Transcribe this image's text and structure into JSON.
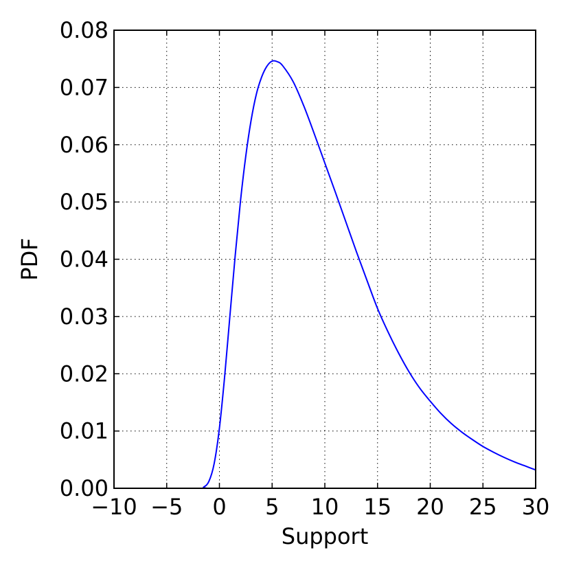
{
  "chart_data": {
    "type": "line",
    "title": "",
    "xlabel": "Support",
    "ylabel": "PDF",
    "xlim": [
      -10,
      30
    ],
    "ylim": [
      0.0,
      0.08
    ],
    "grid": true,
    "x_ticks": [
      -10,
      -5,
      0,
      5,
      10,
      15,
      20,
      25,
      30
    ],
    "x_tick_labels": [
      "−10",
      "−5",
      "0",
      "5",
      "10",
      "15",
      "20",
      "25",
      "30"
    ],
    "y_ticks": [
      0.0,
      0.01,
      0.02,
      0.03,
      0.04,
      0.05,
      0.06,
      0.07,
      0.08
    ],
    "y_tick_labels": [
      "0.00",
      "0.01",
      "0.02",
      "0.03",
      "0.04",
      "0.05",
      "0.06",
      "0.07",
      "0.08"
    ],
    "series": [
      {
        "color": "#0000ff",
        "x": [
          -10,
          -2,
          -1.5,
          -1,
          -0.5,
          0,
          0.5,
          1,
          1.5,
          2,
          2.5,
          3,
          3.5,
          4,
          4.5,
          5,
          5.5,
          6,
          7,
          8,
          9,
          10,
          11,
          12,
          13,
          14,
          15,
          16,
          17,
          18,
          19,
          20,
          21,
          22,
          23,
          24,
          25,
          26,
          27,
          28,
          29,
          30
        ],
        "y": [
          0.0,
          0.0,
          0.0002,
          0.0012,
          0.0043,
          0.0105,
          0.0196,
          0.0302,
          0.0407,
          0.0502,
          0.058,
          0.0642,
          0.0688,
          0.0718,
          0.0737,
          0.0746,
          0.0745,
          0.0738,
          0.071,
          0.0668,
          0.0619,
          0.0568,
          0.0517,
          0.0465,
          0.0413,
          0.0363,
          0.0314,
          0.0273,
          0.0236,
          0.0203,
          0.0175,
          0.0152,
          0.0131,
          0.0113,
          0.0098,
          0.0085,
          0.0073,
          0.0063,
          0.0054,
          0.0046,
          0.0039,
          0.0032
        ]
      }
    ]
  }
}
